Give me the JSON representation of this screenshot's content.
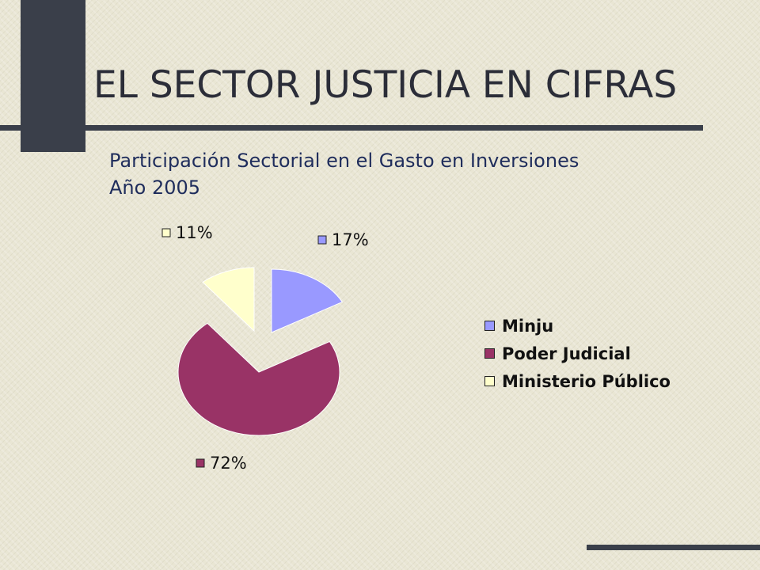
{
  "slide": {
    "title": "EL SECTOR JUSTICIA EN CIFRAS",
    "subtitle_line1": "Participación Sectorial en el Gasto en Inversiones",
    "subtitle_line2": "Año 2005"
  },
  "chart_data": {
    "type": "pie",
    "exploded": true,
    "title": "",
    "slices": [
      {
        "name": "Minju",
        "value": 17,
        "label": "17%",
        "color": "#9999ff"
      },
      {
        "name": "Poder Judicial",
        "value": 72,
        "label": "72%",
        "color": "#993366"
      },
      {
        "name": "Ministerio Público",
        "value": 11,
        "label": "11%",
        "color": "#ffffcc"
      }
    ],
    "legend": {
      "position": "right"
    }
  }
}
